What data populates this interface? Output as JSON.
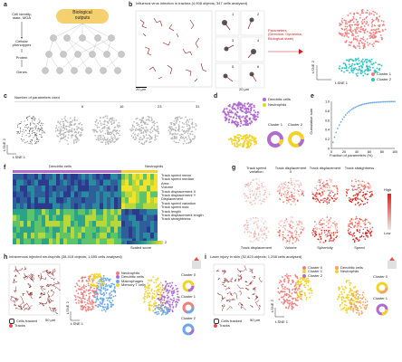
{
  "colors": {
    "red": "#d9534f",
    "teal": "#2ec4c4",
    "purple": "#b06bd1",
    "yellow": "#f2d22a",
    "gray": "#b5b5b5",
    "pink": "#f08080",
    "blue": "#6aa9e8",
    "orange": "#f4a460",
    "gold": "#f4d06f"
  },
  "panel_labels": [
    "a",
    "b",
    "c",
    "d",
    "e",
    "f",
    "g",
    "h",
    "i"
  ],
  "a": {
    "inputs": "Cell identity,\nstate, MOA",
    "state": "Cellular\nphenotypes",
    "protein": "Protein",
    "genes": "Genes",
    "bubble": "Biological\noutputs"
  },
  "b": {
    "title": "Influenza virus infection in trachea (4,908 objects; 347 cells analysed)",
    "scale1": "20 µm",
    "scale2": "20 µm",
    "nums": [
      "1",
      "2",
      "3",
      "4",
      "5",
      "6"
    ],
    "params_text": "Parameters\n(Direction, Dynamics,\nBiological state)",
    "tsne_y": "t-SNE 2",
    "tsne_x": "t-SNE 1",
    "cluster1": "Cluster 1",
    "cluster2": "Cluster 2"
  },
  "c": {
    "title": "Number of parameters used",
    "counts": [
      "",
      "6",
      "16",
      "23",
      "31"
    ],
    "tsne_y": "t-SNE 2",
    "tsne_x": "t-SNE 1"
  },
  "d": {
    "dendritic": "Dendritic cells",
    "neutrophils": "Neutrophils",
    "cluster1": "Cluster 1",
    "cluster2": "Cluster 2"
  },
  "e": {
    "ylabel": "Cumulative sum",
    "xlabel": "Fraction of parameters (%)",
    "yticks": [
      "0",
      "0.2",
      "0.4",
      "0.6",
      "0.8",
      "1.0"
    ],
    "xticks": [
      "0",
      "20",
      "40",
      "60",
      "80",
      "100"
    ]
  },
  "f": {
    "dendritic": "Dendritic cells",
    "neutrophils": "Neutrophils",
    "rows": [
      "Track speed mean",
      "Track speed median",
      "Area",
      "Volume",
      "Track displacement X",
      "Track displacement Y",
      "Displacement",
      "Track speed variation",
      "Track speed max",
      "Track length",
      "Track displacement length",
      "Track straightness"
    ],
    "scale_min": "-2",
    "scale_max": "2",
    "scale_label": "Scaled score"
  },
  "g": {
    "top": [
      "Track speed variation",
      "Track displacement X",
      "Track displacement",
      "Track straightness"
    ],
    "bottom": [
      "Track displacement",
      "Volume",
      "Sphericity",
      "Speed"
    ],
    "high": "High",
    "low": "Low"
  },
  "h": {
    "title": "Intravenous injected neutrophils (38,415 objects; 1,655 cells analysed)",
    "cells_legend": "Cells tracked",
    "tracks_legend": "Tracks",
    "scale": "50 µm",
    "tsne_y": "t-SNE 2",
    "tsne_x": "t-SNE 1",
    "cl0": "Cluster 0",
    "cl1": "Cluster 1",
    "cl2": "Cluster 2",
    "legend_mid": [
      "Neutrophils",
      "Dendritic cells",
      "Macrophages",
      "Memory T cells"
    ]
  },
  "i": {
    "title": "Laser injury in skin (52,823 objects; 1,258 cells analysed)",
    "cells_legend": "Cells tracked",
    "tracks_legend": "Tracks",
    "scale": "50 µm",
    "tsne_y": "t-SNE 2",
    "tsne_x": "t-SNE 1",
    "cluster_labels": [
      "Cluster 0",
      "Cluster 1",
      "Cluster 2",
      "Dendritic cells",
      "Neutrophils"
    ],
    "cl0": "Cluster 0",
    "cl1": "Cluster 1"
  }
}
